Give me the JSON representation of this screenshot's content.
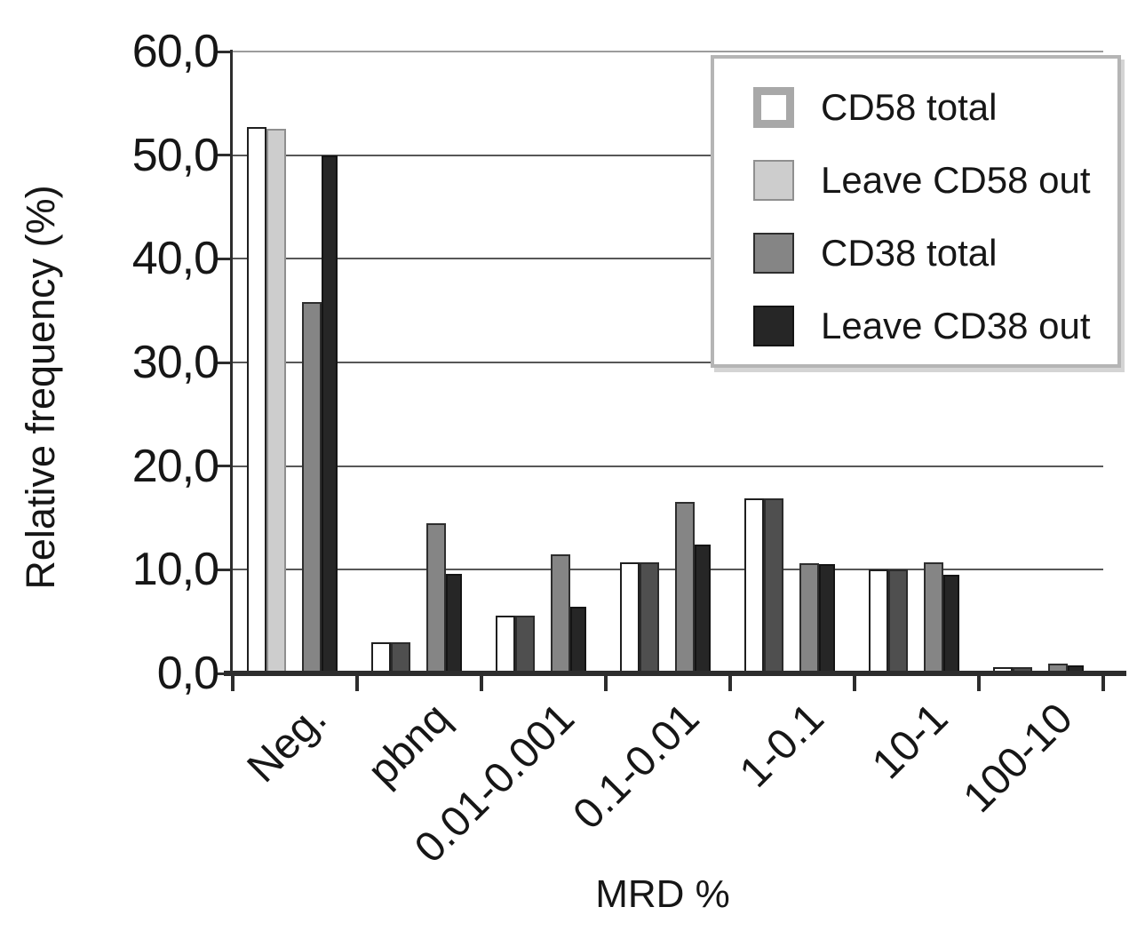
{
  "chart_data": {
    "type": "bar",
    "xlabel": "MRD %",
    "ylabel": "Relative frequency (%)",
    "categories": [
      "Neg.",
      "pbnq",
      "0.01-0.001",
      "0.1-0.01",
      "1-0.1",
      "10-1",
      "100-10"
    ],
    "series": [
      {
        "name": "CD58 total",
        "color": "#ffffff",
        "border": "#1f1f1f",
        "values": [
          52.7,
          3.0,
          5.6,
          10.7,
          16.9,
          10.0,
          0.6
        ]
      },
      {
        "name": "Leave CD58 out",
        "color": "#cdcdcd",
        "border": "#8f8f8f",
        "values": [
          52.5,
          3.0,
          5.6,
          10.7,
          16.9,
          10.0,
          0.6
        ]
      },
      {
        "name": "CD38 total",
        "color": "#858585",
        "border": "#2e2e2e",
        "values": [
          35.8,
          14.5,
          11.5,
          16.5,
          10.6,
          10.7,
          0.9
        ]
      },
      {
        "name": "Leave CD38 out",
        "color": "#262626",
        "border": "#141414",
        "values": [
          50.0,
          9.6,
          6.4,
          12.4,
          10.5,
          9.5,
          0.8
        ]
      }
    ],
    "rendered_color_overrides": [
      {
        "series": 1,
        "categories": [
          1,
          2,
          3,
          4,
          5,
          6
        ],
        "color": "#4f4f4f",
        "border": "#2b2b2b"
      }
    ],
    "y_axis": {
      "range": [
        0,
        60
      ],
      "decimal_style": "comma",
      "ticks": [
        {
          "label": "60,0",
          "value": 60
        },
        {
          "label": "50,0",
          "value": 50
        },
        {
          "label": "40,0",
          "value": 40
        },
        {
          "label": "30,0",
          "value": 30
        },
        {
          "label": "20,0",
          "value": 20
        },
        {
          "label": "10,0",
          "value": 10
        },
        {
          "label": "0,0",
          "value": 0
        }
      ]
    },
    "grid": true,
    "legend_position": "top-right",
    "legend_swatch_frame": "#a8a8a8"
  }
}
